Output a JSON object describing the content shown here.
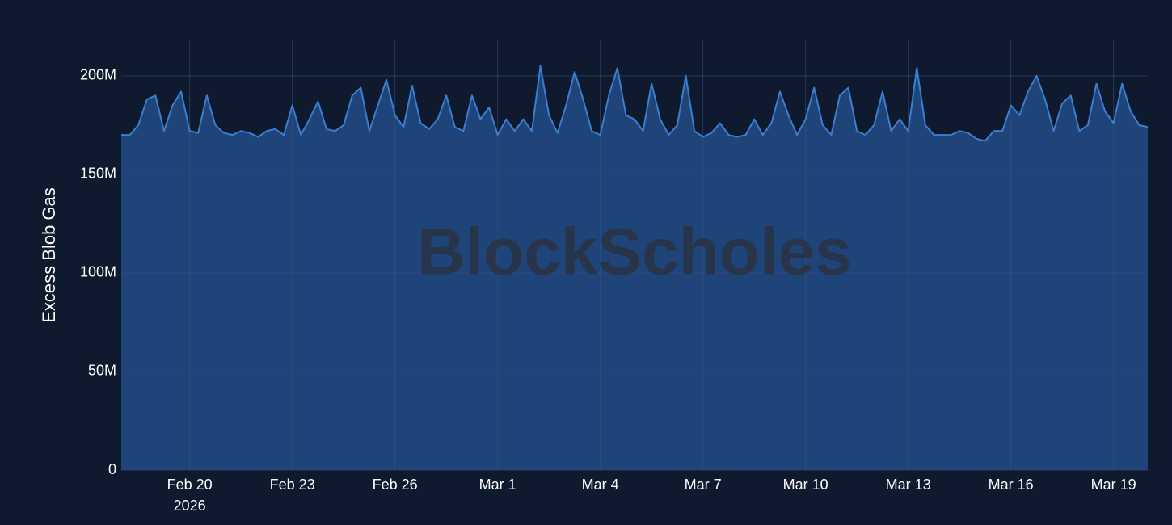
{
  "chart_data": {
    "type": "area",
    "y_label": "Excess Blob Gas",
    "watermark": "BlockScholes",
    "year_label": "2026",
    "color": "#3a7fd0",
    "fill": "#1e4479",
    "grid": true,
    "xlim": [
      "2026-02-18 00:00",
      "2026-03-20 00:00"
    ],
    "ylim": [
      0,
      218000000
    ],
    "yticks": [
      0,
      {
        "value": 50000000,
        "label": "50M"
      },
      {
        "value": 100000000,
        "label": "100M"
      },
      {
        "value": 150000000,
        "label": "150M"
      },
      {
        "value": 200000000,
        "label": "200M"
      }
    ],
    "xticks": [
      {
        "value": "2026-02-20",
        "label": "Feb 20"
      },
      {
        "value": "2026-02-23",
        "label": "Feb 23"
      },
      {
        "value": "2026-02-26",
        "label": "Feb 26"
      },
      {
        "value": "2026-03-01",
        "label": "Mar 1"
      },
      {
        "value": "2026-03-04",
        "label": "Mar 4"
      },
      {
        "value": "2026-03-07",
        "label": "Mar 7"
      },
      {
        "value": "2026-03-10",
        "label": "Mar 10"
      },
      {
        "value": "2026-03-13",
        "label": "Mar 13"
      },
      {
        "value": "2026-03-16",
        "label": "Mar 16"
      },
      {
        "value": "2026-03-19",
        "label": "Mar 19"
      }
    ],
    "x": [
      "2026-02-18 00:00",
      "2026-02-18 06:00",
      "2026-02-18 12:00",
      "2026-02-18 18:00",
      "2026-02-19 00:00",
      "2026-02-19 06:00",
      "2026-02-19 12:00",
      "2026-02-19 18:00",
      "2026-02-20 00:00",
      "2026-02-20 06:00",
      "2026-02-20 12:00",
      "2026-02-20 18:00",
      "2026-02-21 00:00",
      "2026-02-21 06:00",
      "2026-02-21 12:00",
      "2026-02-21 18:00",
      "2026-02-22 00:00",
      "2026-02-22 06:00",
      "2026-02-22 12:00",
      "2026-02-22 18:00",
      "2026-02-23 00:00",
      "2026-02-23 06:00",
      "2026-02-23 12:00",
      "2026-02-23 18:00",
      "2026-02-24 00:00",
      "2026-02-24 06:00",
      "2026-02-24 12:00",
      "2026-02-24 18:00",
      "2026-02-25 00:00",
      "2026-02-25 06:00",
      "2026-02-25 12:00",
      "2026-02-25 18:00",
      "2026-02-26 00:00",
      "2026-02-26 06:00",
      "2026-02-26 12:00",
      "2026-02-26 18:00",
      "2026-02-27 00:00",
      "2026-02-27 06:00",
      "2026-02-27 12:00",
      "2026-02-27 18:00",
      "2026-02-28 00:00",
      "2026-02-28 06:00",
      "2026-02-28 12:00",
      "2026-02-28 18:00",
      "2026-03-01 00:00",
      "2026-03-01 06:00",
      "2026-03-01 12:00",
      "2026-03-01 18:00",
      "2026-03-02 00:00",
      "2026-03-02 06:00",
      "2026-03-02 12:00",
      "2026-03-02 18:00",
      "2026-03-03 00:00",
      "2026-03-03 06:00",
      "2026-03-03 12:00",
      "2026-03-03 18:00",
      "2026-03-04 00:00",
      "2026-03-04 06:00",
      "2026-03-04 12:00",
      "2026-03-04 18:00",
      "2026-03-05 00:00",
      "2026-03-05 06:00",
      "2026-03-05 12:00",
      "2026-03-05 18:00",
      "2026-03-06 00:00",
      "2026-03-06 06:00",
      "2026-03-06 12:00",
      "2026-03-06 18:00",
      "2026-03-07 00:00",
      "2026-03-07 06:00",
      "2026-03-07 12:00",
      "2026-03-07 18:00",
      "2026-03-08 00:00",
      "2026-03-08 06:00",
      "2026-03-08 12:00",
      "2026-03-08 18:00",
      "2026-03-09 00:00",
      "2026-03-09 06:00",
      "2026-03-09 12:00",
      "2026-03-09 18:00",
      "2026-03-10 00:00",
      "2026-03-10 06:00",
      "2026-03-10 12:00",
      "2026-03-10 18:00",
      "2026-03-11 00:00",
      "2026-03-11 06:00",
      "2026-03-11 12:00",
      "2026-03-11 18:00",
      "2026-03-12 00:00",
      "2026-03-12 06:00",
      "2026-03-12 12:00",
      "2026-03-12 18:00",
      "2026-03-13 00:00",
      "2026-03-13 06:00",
      "2026-03-13 12:00",
      "2026-03-13 18:00",
      "2026-03-14 00:00",
      "2026-03-14 06:00",
      "2026-03-14 12:00",
      "2026-03-14 18:00",
      "2026-03-15 00:00",
      "2026-03-15 06:00",
      "2026-03-15 12:00",
      "2026-03-15 18:00",
      "2026-03-16 00:00",
      "2026-03-16 06:00",
      "2026-03-16 12:00",
      "2026-03-16 18:00",
      "2026-03-17 00:00",
      "2026-03-17 06:00",
      "2026-03-17 12:00",
      "2026-03-17 18:00",
      "2026-03-18 00:00",
      "2026-03-18 06:00",
      "2026-03-18 12:00",
      "2026-03-18 18:00",
      "2026-03-19 00:00",
      "2026-03-19 06:00",
      "2026-03-19 12:00",
      "2026-03-19 18:00",
      "2026-03-20 00:00"
    ],
    "values": [
      170000000,
      170000000,
      175000000,
      188000000,
      190000000,
      172000000,
      185000000,
      192000000,
      172000000,
      171000000,
      190000000,
      175000000,
      171000000,
      170000000,
      172000000,
      171000000,
      169000000,
      172000000,
      173000000,
      170000000,
      185000000,
      170000000,
      178000000,
      187000000,
      173000000,
      172000000,
      175000000,
      190000000,
      194000000,
      172000000,
      185000000,
      198000000,
      180000000,
      174000000,
      195000000,
      176000000,
      173000000,
      178000000,
      190000000,
      174000000,
      172000000,
      190000000,
      178000000,
      184000000,
      170000000,
      178000000,
      172000000,
      178000000,
      172000000,
      205000000,
      180000000,
      171000000,
      185000000,
      202000000,
      188000000,
      172000000,
      170000000,
      190000000,
      204000000,
      180000000,
      178000000,
      172000000,
      196000000,
      178000000,
      170000000,
      175000000,
      200000000,
      172000000,
      169000000,
      171000000,
      176000000,
      170000000,
      169000000,
      170000000,
      178000000,
      170000000,
      176000000,
      192000000,
      180000000,
      170000000,
      178000000,
      194000000,
      175000000,
      170000000,
      190000000,
      194000000,
      172000000,
      170000000,
      175000000,
      192000000,
      172000000,
      178000000,
      172000000,
      204000000,
      175000000,
      170000000,
      170000000,
      170000000,
      172000000,
      171000000,
      168000000,
      167000000,
      172000000,
      172000000,
      185000000,
      180000000,
      192000000,
      200000000,
      188000000,
      172000000,
      186000000,
      190000000,
      172000000,
      175000000,
      196000000,
      182000000,
      176000000,
      196000000,
      182000000,
      175000000,
      174000000
    ]
  }
}
